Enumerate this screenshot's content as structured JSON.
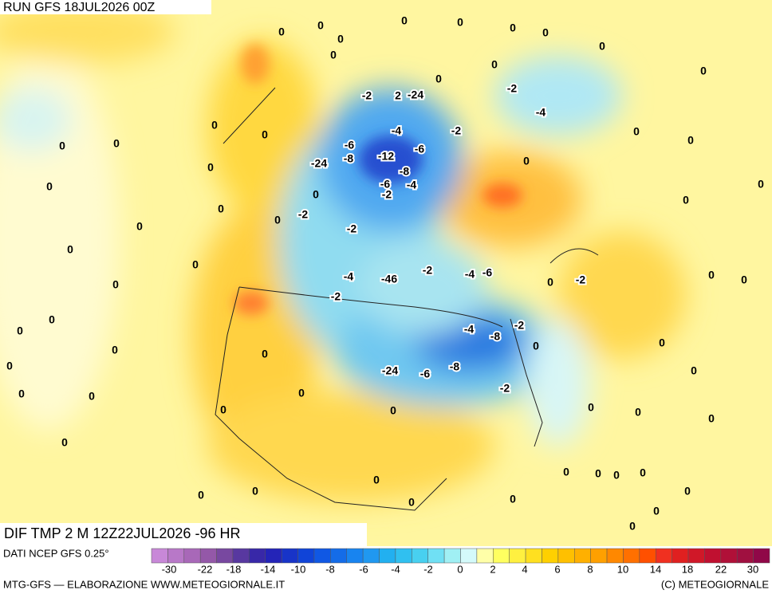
{
  "header": {
    "title": "RUN GFS 18JUL2026 00Z"
  },
  "map": {
    "subtitle": "DIF TMP 2 M 12Z22JUL2026 -96 HR",
    "contour_labels": [
      "0",
      "0",
      "0",
      "0",
      "0",
      "0",
      "0",
      "0",
      "0",
      "0",
      "0",
      "0",
      "-2",
      "2",
      "-24",
      "-2",
      "-4",
      "-2",
      "-4",
      "-6",
      "-8",
      "-12",
      "-6",
      "-8",
      "-6",
      "-4",
      "-2",
      "-24",
      "-2",
      "-2",
      "-4",
      "-46",
      "-2",
      "-4",
      "-6",
      "-2",
      "-2",
      "-2",
      "-4",
      "-8",
      "-24",
      "-6",
      "-8",
      "-2",
      "0",
      "0",
      "0",
      "0",
      "0",
      "0",
      "0",
      "0",
      "0",
      "0",
      "0",
      "0",
      "0",
      "0",
      "0",
      "0",
      "0",
      "0",
      "0",
      "0",
      "0",
      "0",
      "0",
      "0",
      "0",
      "0",
      "0",
      "0",
      "0",
      "0",
      "0",
      "0",
      "0",
      "0",
      "0",
      "0",
      "0",
      "0",
      "0",
      "0",
      "0",
      "0",
      "0",
      "0",
      "0",
      "0",
      "0",
      "0",
      "0",
      "0"
    ]
  },
  "colorbar": {
    "source": "DATI NCEP GFS 0.25°",
    "ticks": [
      "-30",
      "-22",
      "-18",
      "-14",
      "-10",
      "-8",
      "-6",
      "-4",
      "-2",
      "0",
      "2",
      "4",
      "6",
      "8",
      "10",
      "14",
      "18",
      "22",
      "30"
    ],
    "colors": [
      "#c888d8",
      "#b878c8",
      "#a868b8",
      "#9458a8",
      "#7848a0",
      "#5838a0",
      "#3828a8",
      "#2424b8",
      "#1834c8",
      "#1044d8",
      "#1058e4",
      "#146ce8",
      "#1884f0",
      "#2098f0",
      "#22b0f0",
      "#30c0f0",
      "#48d0f0",
      "#70e0f4",
      "#a0f0f4",
      "#d4fafa",
      "#ffffa8",
      "#ffff60",
      "#fff040",
      "#ffe020",
      "#ffd000",
      "#ffc000",
      "#ffb000",
      "#ffa000",
      "#ff8800",
      "#ff7000",
      "#ff5000",
      "#f03020",
      "#e02020",
      "#d01828",
      "#c01030",
      "#b01038",
      "#a01040",
      "#900848"
    ]
  },
  "footer": {
    "left": "MTG-GFS — ELABORAZIONE WWW.METEOGIORNALE.IT",
    "right": "(C) METEOGIORNALE"
  }
}
